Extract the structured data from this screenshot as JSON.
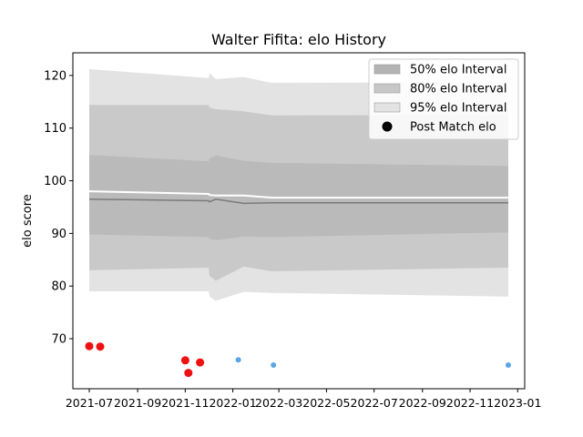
{
  "chart_data": {
    "type": "area",
    "title": "Walter Fifita: elo History",
    "xlabel": "",
    "ylabel": "elo score",
    "xlim": [
      "2021-06-10",
      "2023-01-10"
    ],
    "ylim": [
      60.5,
      124.3
    ],
    "x_ticks": [
      "2021-07",
      "2021-09",
      "2021-11",
      "2022-01",
      "2022-03",
      "2022-05",
      "2022-07",
      "2022-09",
      "2022-11",
      "2023-01"
    ],
    "y_ticks": [
      70,
      80,
      90,
      100,
      110,
      120
    ],
    "grid": false,
    "legend_position": "top-right",
    "legend": [
      {
        "label": "50% elo Interval",
        "kind": "patch",
        "color": "#b3b3b3"
      },
      {
        "label": "80% elo Interval",
        "kind": "patch",
        "color": "#c7c7c7"
      },
      {
        "label": "95% elo Interval",
        "kind": "patch",
        "color": "#e3e3e3"
      },
      {
        "label": "Post Match elo",
        "kind": "marker",
        "color": "#000000"
      }
    ],
    "x": [
      "2021-07-01",
      "2021-12-01",
      "2021-12-02",
      "2021-12-10",
      "2022-01-15",
      "2022-02-20",
      "2022-12-20"
    ],
    "bands": [
      {
        "name": "95% elo Interval",
        "color": "#e3e3e3",
        "lower": [
          79.0,
          79.0,
          78.0,
          77.2,
          78.9,
          78.7,
          78.0
        ],
        "upper": [
          121.2,
          119.5,
          120.5,
          119.3,
          119.7,
          118.6,
          118.7
        ]
      },
      {
        "name": "80% elo Interval",
        "color": "#c9c9c9",
        "lower": [
          83.0,
          83.5,
          82.0,
          81.0,
          83.7,
          82.8,
          83.5
        ],
        "upper": [
          114.4,
          114.4,
          113.9,
          113.6,
          113.2,
          112.4,
          112.5
        ]
      },
      {
        "name": "50% elo Interval",
        "color": "#bababa",
        "lower": [
          89.8,
          89.3,
          89.0,
          88.7,
          89.4,
          89.3,
          90.2
        ],
        "upper": [
          104.9,
          103.7,
          104.2,
          104.8,
          103.8,
          103.4,
          102.8
        ]
      }
    ],
    "median_line": {
      "color": "#7a7a7a",
      "values": [
        96.5,
        96.2,
        96.0,
        96.5,
        95.7,
        95.8,
        95.8
      ]
    },
    "white_line": {
      "color": "#ffffff",
      "values": [
        98.0,
        97.5,
        97.3,
        97.2,
        97.2,
        96.8,
        96.8
      ]
    },
    "points": [
      {
        "date": "2021-07-01",
        "elo": 68.6,
        "color": "#ee1111",
        "size": "large"
      },
      {
        "date": "2021-07-15",
        "elo": 68.5,
        "color": "#ee1111",
        "size": "large"
      },
      {
        "date": "2021-11-01",
        "elo": 65.9,
        "color": "#ee1111",
        "size": "large"
      },
      {
        "date": "2021-11-05",
        "elo": 63.5,
        "color": "#ee1111",
        "size": "large"
      },
      {
        "date": "2021-11-20",
        "elo": 65.5,
        "color": "#ee1111",
        "size": "large"
      },
      {
        "date": "2022-01-08",
        "elo": 66.0,
        "color": "#5aa5e6",
        "size": "small"
      },
      {
        "date": "2022-02-22",
        "elo": 65.0,
        "color": "#5aa5e6",
        "size": "small"
      },
      {
        "date": "2022-12-20",
        "elo": 65.0,
        "color": "#5aa5e6",
        "size": "small"
      }
    ]
  }
}
